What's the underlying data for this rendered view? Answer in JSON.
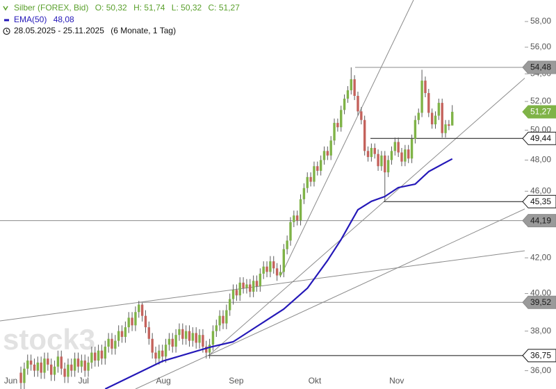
{
  "chart_data": {
    "type": "candlestick",
    "title": "Silber (FOREX, Bid)",
    "ohlc_labels": [
      "O: 50,32",
      "H: 51,74",
      "L: 50,32",
      "C: 51,27"
    ],
    "date_range": "28.05.2025 - 25.11.2025",
    "period": "(6 Monate, 1 Tag)",
    "watermark": "stock3",
    "up_color": "#7fb347",
    "down_color": "#c4625c",
    "wick_color": "#5a5a5a",
    "log_scale": true,
    "ylim": [
      35.11,
      59.73
    ],
    "yticks": [
      {
        "value": 36,
        "label": "36,00"
      },
      {
        "value": 38,
        "label": "38,00"
      },
      {
        "value": 40,
        "label": "40,00"
      },
      {
        "value": 42,
        "label": "42,00"
      },
      {
        "value": 44,
        "label": "44,00"
      },
      {
        "value": 46,
        "label": "46,00"
      },
      {
        "value": 48,
        "label": "48,00"
      },
      {
        "value": 50,
        "label": "50,00"
      },
      {
        "value": 52,
        "label": "52,00"
      },
      {
        "value": 54,
        "label": "54,00"
      },
      {
        "value": 56,
        "label": "56,00"
      },
      {
        "value": 58,
        "label": "58,00"
      }
    ],
    "xlim": [
      -6.2,
      149.5
    ],
    "xticks": [
      {
        "value": -3,
        "label": "Jun"
      },
      {
        "value": 18.6,
        "label": "Jul"
      },
      {
        "value": 42.3,
        "label": "Aug"
      },
      {
        "value": 63.9,
        "label": "Sep"
      },
      {
        "value": 87.2,
        "label": "Okt"
      },
      {
        "value": 111.5,
        "label": "Nov"
      }
    ],
    "open": [
      35.9,
      35.4,
      36.1,
      36.5,
      36.3,
      36.0,
      36.4,
      35.9,
      36.6,
      36.3,
      35.8,
      36.2,
      36.7,
      36.1,
      35.7,
      36.3,
      36.0,
      36.6,
      36.2,
      36.5,
      36.0,
      36.4,
      36.9,
      36.5,
      37.0,
      36.6,
      37.2,
      37.6,
      37.1,
      37.5,
      38.0,
      37.7,
      38.2,
      38.7,
      38.3,
      39.0,
      39.4,
      38.8,
      38.2,
      37.6,
      36.9,
      36.6,
      37.0,
      36.7,
      37.3,
      37.6,
      37.2,
      37.8,
      38.1,
      37.6,
      38.0,
      37.5,
      37.9,
      37.4,
      37.8,
      37.2,
      36.9,
      37.3,
      38.0,
      38.3,
      38.8,
      38.4,
      39.1,
      39.7,
      40.2,
      39.9,
      40.6,
      40.3,
      40.5,
      40.1,
      40.7,
      40.4,
      41.1,
      41.5,
      41.2,
      41.8,
      41.4,
      41.0,
      41.2,
      42.5,
      43.0,
      44.1,
      44.5,
      44.2,
      45.5,
      46.2,
      46.9,
      46.6,
      47.6,
      47.3,
      48.0,
      48.6,
      48.3,
      49.3,
      50.5,
      50.2,
      51.4,
      52.2,
      52.8,
      53.6,
      52.4,
      51.3,
      50.7,
      48.6,
      48.2,
      48.8,
      48.4,
      47.6,
      48.3,
      47.2,
      48.0,
      48.6,
      49.2,
      48.5,
      47.9,
      48.7,
      48.1,
      49.4,
      50.7,
      51.2,
      53.5,
      52.6,
      51.2,
      50.4,
      51.0,
      51.9,
      49.8,
      50.4,
      50.32
    ],
    "high": [
      36.2,
      36.4,
      36.8,
      36.8,
      36.6,
      36.7,
      36.7,
      36.9,
      36.9,
      36.6,
      36.5,
      37.0,
      37.0,
      36.4,
      36.6,
      36.6,
      36.9,
      36.9,
      36.8,
      36.8,
      36.7,
      37.2,
      37.2,
      37.3,
      37.3,
      37.5,
      37.9,
      37.9,
      37.8,
      38.3,
      38.3,
      38.5,
      39.0,
      39.0,
      39.3,
      39.6,
      39.5,
      39.1,
      38.5,
      37.9,
      37.2,
      37.3,
      37.3,
      37.6,
      37.9,
      37.9,
      38.1,
      38.4,
      38.4,
      38.3,
      38.3,
      38.2,
      38.2,
      38.1,
      38.1,
      37.5,
      37.6,
      38.3,
      38.6,
      39.1,
      39.1,
      39.4,
      40.0,
      40.5,
      40.5,
      40.9,
      40.9,
      40.8,
      40.8,
      41.0,
      41.0,
      41.4,
      41.8,
      41.8,
      42.1,
      42.1,
      41.7,
      41.6,
      42.8,
      43.3,
      44.4,
      44.8,
      44.8,
      45.8,
      46.5,
      47.2,
      47.2,
      47.9,
      47.9,
      48.3,
      48.9,
      48.9,
      49.6,
      50.8,
      50.8,
      51.7,
      52.5,
      53.1,
      54.48,
      53.9,
      52.7,
      51.6,
      51.0,
      48.9,
      49.1,
      49.1,
      48.7,
      48.6,
      48.6,
      48.3,
      48.9,
      49.5,
      49.5,
      48.8,
      49.0,
      49.0,
      49.7,
      51.0,
      51.5,
      54.3,
      53.8,
      52.9,
      51.5,
      51.3,
      52.2,
      52.2,
      50.7,
      50.7,
      51.74
    ],
    "low": [
      35.1,
      35.1,
      35.8,
      36.0,
      35.7,
      35.7,
      35.6,
      35.6,
      36.0,
      35.5,
      35.5,
      35.9,
      35.8,
      35.4,
      35.4,
      35.7,
      35.7,
      35.9,
      35.9,
      35.7,
      35.7,
      36.1,
      36.2,
      36.2,
      36.3,
      36.3,
      36.9,
      36.8,
      36.8,
      37.2,
      37.4,
      37.4,
      37.9,
      38.0,
      38.0,
      38.7,
      38.5,
      37.9,
      37.3,
      36.6,
      36.3,
      36.3,
      36.4,
      36.4,
      37.0,
      36.9,
      36.9,
      37.5,
      37.3,
      37.3,
      37.2,
      37.2,
      37.1,
      37.1,
      36.9,
      36.6,
      36.6,
      37.0,
      37.7,
      38.0,
      38.1,
      38.1,
      38.8,
      39.4,
      39.6,
      39.6,
      40.0,
      40.0,
      39.8,
      39.8,
      40.1,
      40.1,
      40.8,
      40.9,
      40.9,
      41.1,
      40.7,
      40.9,
      40.9,
      42.2,
      42.7,
      43.8,
      43.9,
      43.9,
      45.2,
      45.9,
      46.3,
      46.3,
      47.0,
      47.0,
      47.7,
      48.0,
      48.0,
      49.0,
      49.9,
      49.9,
      51.1,
      51.9,
      52.5,
      52.1,
      51.0,
      50.4,
      48.3,
      47.9,
      47.9,
      48.1,
      47.3,
      47.3,
      45.35,
      46.9,
      47.7,
      48.3,
      48.2,
      47.6,
      47.6,
      47.8,
      47.8,
      49.1,
      50.4,
      50.9,
      52.3,
      50.9,
      50.1,
      50.1,
      50.7,
      49.5,
      49.5,
      50.0,
      50.32
    ],
    "close": [
      35.4,
      36.1,
      36.5,
      36.3,
      36.0,
      36.4,
      35.9,
      36.6,
      36.3,
      35.8,
      36.2,
      36.7,
      36.1,
      35.7,
      36.3,
      36.0,
      36.6,
      36.2,
      36.5,
      36.0,
      36.4,
      36.9,
      36.5,
      37.0,
      36.6,
      37.2,
      37.6,
      37.1,
      37.5,
      38.0,
      37.7,
      38.2,
      38.7,
      38.3,
      39.0,
      39.4,
      38.8,
      38.2,
      37.6,
      36.9,
      36.6,
      37.0,
      36.7,
      37.3,
      37.6,
      37.2,
      37.8,
      38.1,
      37.6,
      38.0,
      37.5,
      37.9,
      37.4,
      37.8,
      37.2,
      36.9,
      37.3,
      38.0,
      38.3,
      38.8,
      38.4,
      39.1,
      39.7,
      40.2,
      39.9,
      40.6,
      40.3,
      40.5,
      40.1,
      40.7,
      40.4,
      41.1,
      41.5,
      41.2,
      41.8,
      41.4,
      41.0,
      41.2,
      42.5,
      43.0,
      44.1,
      44.5,
      44.2,
      45.5,
      46.2,
      46.9,
      46.6,
      47.6,
      47.3,
      48.0,
      48.6,
      48.3,
      49.3,
      50.5,
      50.2,
      51.4,
      52.2,
      52.8,
      53.6,
      52.4,
      51.3,
      50.7,
      48.6,
      48.2,
      48.8,
      48.4,
      47.6,
      48.3,
      47.2,
      48.0,
      48.6,
      49.2,
      48.5,
      47.9,
      48.7,
      48.1,
      49.4,
      50.7,
      51.2,
      53.5,
      52.6,
      51.2,
      50.4,
      51.0,
      51.9,
      49.8,
      50.4,
      50.3,
      51.27
    ],
    "series": [
      {
        "name": "EMA(50)",
        "value_label": "48,08",
        "color": "#2418b8",
        "x": [
          25,
          42,
          56,
          63,
          70,
          78,
          85,
          91,
          95,
          100,
          104,
          108,
          112,
          117,
          121,
          128
        ],
        "values": [
          35.11,
          36.47,
          37.17,
          37.45,
          38.24,
          39.16,
          40.29,
          41.85,
          43.06,
          44.85,
          45.37,
          45.67,
          46.23,
          46.45,
          47.25,
          48.08
        ]
      }
    ],
    "levels": [
      {
        "value": 54.48,
        "label": "54,48",
        "color": "#8a8a8a",
        "fill": "#9a9a9a",
        "text_color": "#1a1a1a"
      },
      {
        "value": 51.27,
        "label": "51,27",
        "color": "#7fb347",
        "fill": "#7fb347",
        "text_color": "#ffffff"
      },
      {
        "value": 49.44,
        "label": "49,44",
        "color": "#111111",
        "fill": "#ffffff",
        "text_color": "#111111"
      },
      {
        "value": 45.35,
        "label": "45,35",
        "color": "#111111",
        "fill": "#ffffff",
        "text_color": "#111111"
      },
      {
        "value": 44.19,
        "label": "44,19",
        "color": "#8a8a8a",
        "fill": "#9a9a9a",
        "text_color": "#1a1a1a"
      },
      {
        "value": 39.52,
        "label": "39,52",
        "color": "#8a8a8a",
        "fill": "#9a9a9a",
        "text_color": "#1a1a1a"
      },
      {
        "value": 36.75,
        "label": "36,75",
        "color": "#111111",
        "fill": "#ffffff",
        "text_color": "#111111"
      }
    ]
  }
}
